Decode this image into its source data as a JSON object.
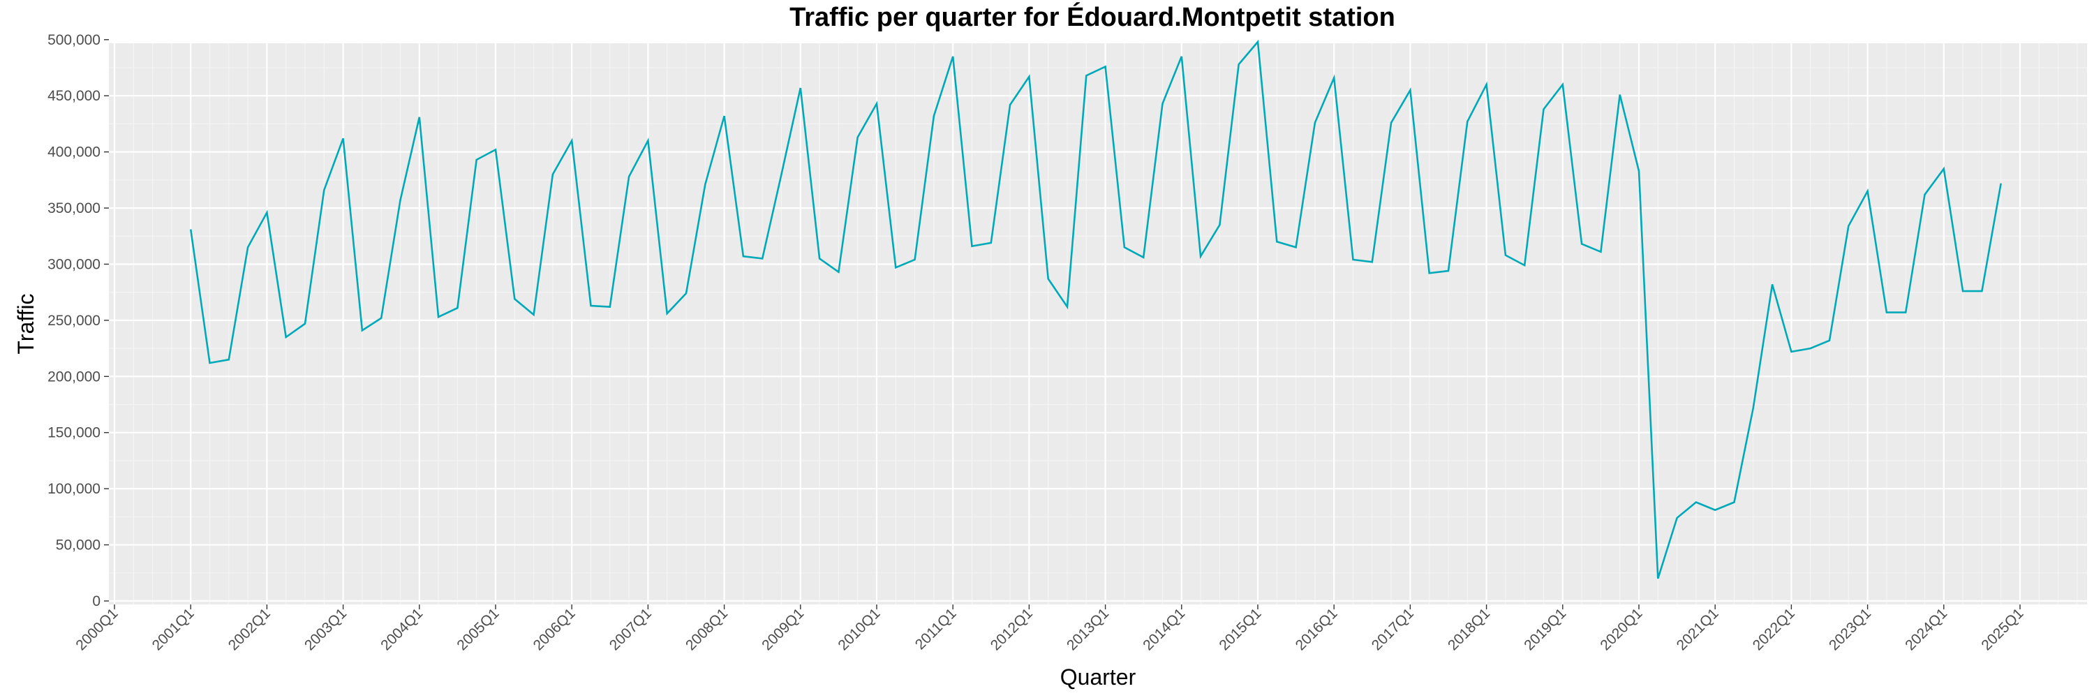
{
  "chart_data": {
    "type": "line",
    "title": "Traffic per quarter for Édouard.Montpetit station",
    "xlabel": "Quarter",
    "ylabel": "Traffic",
    "ylim": [
      0,
      520000
    ],
    "y_ticks": [
      0,
      50000,
      100000,
      150000,
      200000,
      250000,
      300000,
      350000,
      400000,
      450000,
      500000
    ],
    "y_tick_labels": [
      "0",
      "50,000",
      "100,000",
      "150,000",
      "200,000",
      "250,000",
      "300,000",
      "350,000",
      "400,000",
      "450,000",
      "500,000"
    ],
    "x_tick_labels": [
      "2000Q1",
      "2001Q1",
      "2002Q1",
      "2003Q1",
      "2004Q1",
      "2005Q1",
      "2006Q1",
      "2007Q1",
      "2008Q1",
      "2009Q1",
      "2010Q1",
      "2011Q1",
      "2012Q1",
      "2013Q1",
      "2014Q1",
      "2015Q1",
      "2016Q1",
      "2017Q1",
      "2018Q1",
      "2019Q1",
      "2020Q1",
      "2021Q1",
      "2022Q1",
      "2023Q1",
      "2024Q1",
      "2025Q1"
    ],
    "grid": true,
    "line_color": "#00A9B7",
    "panel_color": "#EBEBEB",
    "x": [
      "2001Q1",
      "2001Q2",
      "2001Q3",
      "2001Q4",
      "2002Q1",
      "2002Q2",
      "2002Q3",
      "2002Q4",
      "2003Q1",
      "2003Q2",
      "2003Q3",
      "2003Q4",
      "2004Q1",
      "2004Q2",
      "2004Q3",
      "2004Q4",
      "2005Q1",
      "2005Q2",
      "2005Q3",
      "2005Q4",
      "2006Q1",
      "2006Q2",
      "2006Q3",
      "2006Q4",
      "2007Q1",
      "2007Q2",
      "2007Q3",
      "2007Q4",
      "2008Q1",
      "2008Q2",
      "2008Q3",
      "2008Q4",
      "2009Q1",
      "2009Q2",
      "2009Q3",
      "2009Q4",
      "2010Q1",
      "2010Q2",
      "2010Q3",
      "2010Q4",
      "2011Q1",
      "2011Q2",
      "2011Q3",
      "2011Q4",
      "2012Q1",
      "2012Q2",
      "2012Q3",
      "2012Q4",
      "2013Q1",
      "2013Q2",
      "2013Q3",
      "2013Q4",
      "2014Q1",
      "2014Q2",
      "2014Q3",
      "2014Q4",
      "2015Q1",
      "2015Q2",
      "2015Q3",
      "2015Q4",
      "2016Q1",
      "2016Q2",
      "2016Q3",
      "2016Q4",
      "2017Q1",
      "2017Q2",
      "2017Q3",
      "2017Q4",
      "2018Q1",
      "2018Q2",
      "2018Q3",
      "2018Q4",
      "2019Q1",
      "2019Q2",
      "2019Q3",
      "2019Q4",
      "2020Q1",
      "2020Q2",
      "2020Q3",
      "2020Q4",
      "2021Q1",
      "2021Q2",
      "2021Q3",
      "2021Q4",
      "2022Q1",
      "2022Q2",
      "2022Q3",
      "2022Q4",
      "2023Q1",
      "2023Q2",
      "2023Q3",
      "2023Q4",
      "2024Q1",
      "2024Q2",
      "2024Q3",
      "2024Q4"
    ],
    "values": [
      331000,
      212000,
      215000,
      315000,
      346000,
      235000,
      247000,
      366000,
      412000,
      241000,
      252000,
      357000,
      431000,
      253000,
      261000,
      393000,
      402000,
      269000,
      255000,
      380000,
      410000,
      263000,
      262000,
      378000,
      410000,
      256000,
      274000,
      371000,
      432000,
      307000,
      305000,
      380000,
      457000,
      305000,
      293000,
      413000,
      443000,
      297000,
      304000,
      432000,
      485000,
      316000,
      319000,
      442000,
      467000,
      287000,
      262000,
      468000,
      476000,
      315000,
      306000,
      443000,
      485000,
      307000,
      335000,
      478000,
      498000,
      320000,
      315000,
      426000,
      466000,
      304000,
      302000,
      426000,
      455000,
      292000,
      294000,
      427000,
      460000,
      308000,
      299000,
      438000,
      460000,
      318000,
      311000,
      451000,
      383000,
      20000,
      74000,
      88000,
      81000,
      88000,
      172000,
      282000,
      222000,
      225000,
      232000,
      334000,
      365000,
      257000,
      257000,
      362000,
      385000,
      276000,
      276000,
      372000
    ]
  }
}
